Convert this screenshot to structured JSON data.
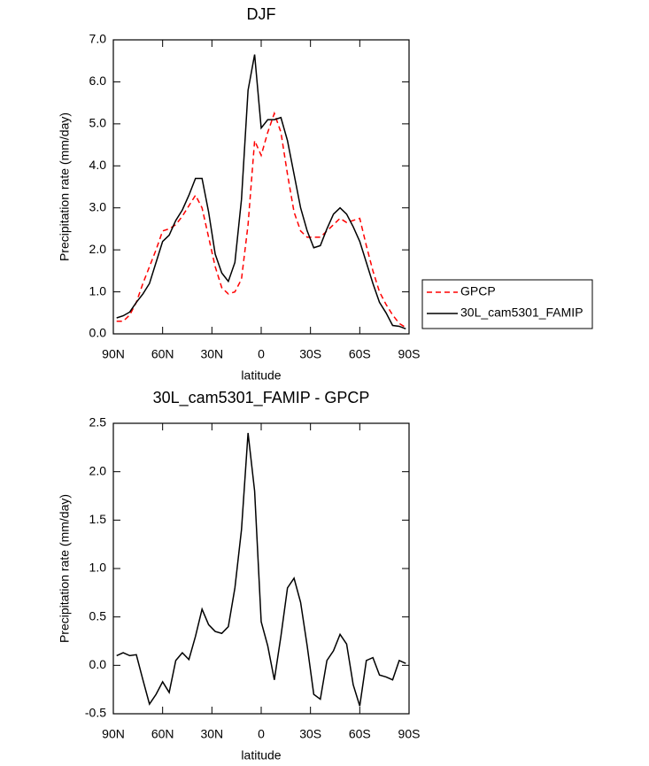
{
  "chart_data": [
    {
      "type": "line",
      "title": "DJF",
      "x_label": "latitude",
      "y_label": "Precipitation rate (mm/day)",
      "x": [
        88,
        84,
        80,
        76,
        72,
        68,
        64,
        60,
        56,
        52,
        48,
        44,
        40,
        36,
        32,
        28,
        24,
        20,
        16,
        12,
        8,
        4,
        0,
        -4,
        -8,
        -12,
        -16,
        -20,
        -24,
        -28,
        -32,
        -36,
        -40,
        -44,
        -48,
        -52,
        -56,
        -60,
        -64,
        -68,
        -72,
        -76,
        -80,
        -84,
        -88
      ],
      "series": [
        {
          "name": "GPCP",
          "color": "#ff0000",
          "dash": "dashed",
          "values": [
            0.3,
            0.3,
            0.45,
            0.75,
            1.2,
            1.6,
            2.0,
            2.45,
            2.5,
            2.6,
            2.8,
            3.05,
            3.3,
            3.0,
            2.3,
            1.6,
            1.1,
            0.95,
            1.0,
            1.3,
            2.6,
            4.6,
            4.25,
            4.8,
            5.25,
            4.8,
            3.8,
            2.9,
            2.45,
            2.3,
            2.3,
            2.3,
            2.45,
            2.6,
            2.75,
            2.65,
            2.7,
            2.75,
            2.1,
            1.5,
            1.0,
            0.7,
            0.45,
            0.25,
            0.15
          ]
        },
        {
          "name": "30L_cam5301_FAMIP",
          "color": "#000000",
          "dash": "solid",
          "values": [
            0.38,
            0.43,
            0.52,
            0.75,
            0.95,
            1.2,
            1.7,
            2.2,
            2.35,
            2.7,
            2.95,
            3.3,
            3.7,
            3.7,
            2.9,
            1.9,
            1.45,
            1.25,
            1.7,
            3.2,
            5.8,
            6.65,
            4.9,
            5.1,
            5.1,
            5.15,
            4.6,
            3.8,
            3.0,
            2.45,
            2.05,
            2.1,
            2.5,
            2.85,
            3.0,
            2.85,
            2.55,
            2.2,
            1.7,
            1.2,
            0.75,
            0.5,
            0.2,
            0.18,
            0.12
          ]
        }
      ],
      "xlim": [
        90,
        -90
      ],
      "xticks": [
        {
          "value": 90,
          "label": "90N"
        },
        {
          "value": 60,
          "label": "60N"
        },
        {
          "value": 30,
          "label": "30N"
        },
        0,
        {
          "value": -30,
          "label": "30S"
        },
        {
          "value": -60,
          "label": "60S"
        },
        {
          "value": -90,
          "label": "90S"
        }
      ],
      "ylim": [
        0,
        7
      ],
      "yticks": [
        {
          "value": 0,
          "label": "0.0"
        },
        {
          "value": 1,
          "label": "1.0"
        },
        {
          "value": 2,
          "label": "2.0"
        },
        {
          "value": 3,
          "label": "3.0"
        },
        {
          "value": 4,
          "label": "4.0"
        },
        {
          "value": 5,
          "label": "5.0"
        },
        {
          "value": 6,
          "label": "6.0"
        },
        {
          "value": 7,
          "label": "7.0"
        }
      ],
      "legend": "outside-right"
    },
    {
      "type": "line",
      "title": "30L_cam5301_FAMIP - GPCP",
      "x_label": "latitude",
      "y_label": "Precipitation rate (mm/day)",
      "x": [
        88,
        84,
        80,
        76,
        72,
        68,
        64,
        60,
        56,
        52,
        48,
        44,
        40,
        36,
        32,
        28,
        24,
        20,
        16,
        12,
        8,
        4,
        0,
        -4,
        -8,
        -12,
        -16,
        -20,
        -24,
        -28,
        -32,
        -36,
        -40,
        -44,
        -48,
        -52,
        -56,
        -60,
        -64,
        -68,
        -72,
        -76,
        -80,
        -84,
        -88
      ],
      "color": "#000000",
      "values": [
        0.1,
        0.13,
        0.1,
        0.11,
        -0.15,
        -0.4,
        -0.3,
        -0.17,
        -0.28,
        0.05,
        0.13,
        0.06,
        0.3,
        0.58,
        0.42,
        0.35,
        0.33,
        0.4,
        0.8,
        1.4,
        2.4,
        1.8,
        0.45,
        0.2,
        -0.15,
        0.3,
        0.8,
        0.9,
        0.65,
        0.2,
        -0.3,
        -0.35,
        0.05,
        0.15,
        0.32,
        0.22,
        -0.2,
        -0.42,
        0.05,
        0.08,
        -0.1,
        -0.12,
        -0.15,
        0.05,
        0.02
      ],
      "xlim": [
        90,
        -90
      ],
      "xticks": [
        {
          "value": 90,
          "label": "90N"
        },
        {
          "value": 60,
          "label": "60N"
        },
        {
          "value": 30,
          "label": "30N"
        },
        0,
        {
          "value": -30,
          "label": "30S"
        },
        {
          "value": -60,
          "label": "60S"
        },
        {
          "value": -90,
          "label": "90S"
        }
      ],
      "ylim": [
        -0.5,
        2.5
      ],
      "yticks": [
        -0.5,
        {
          "value": 0,
          "label": "0.0"
        },
        0.5,
        {
          "value": 1,
          "label": "1.0"
        },
        1.5,
        {
          "value": 2,
          "label": "2.0"
        },
        2.5
      ]
    }
  ]
}
